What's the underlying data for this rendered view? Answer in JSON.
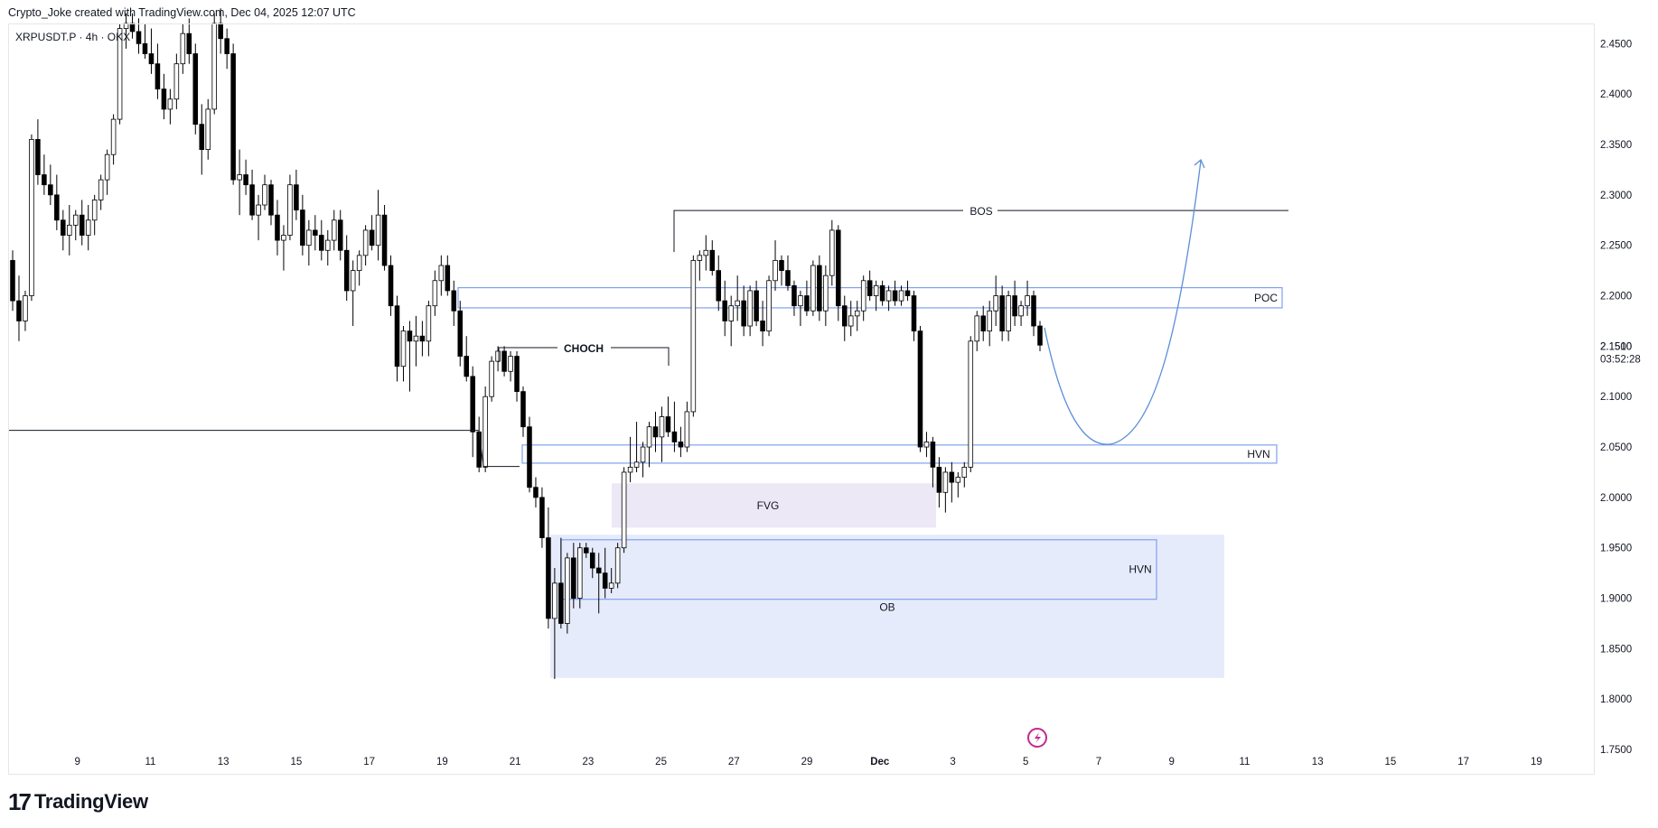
{
  "header": {
    "attribution": "Crypto_Joke created with TradingView.com, Dec 04, 2025 12:07 UTC"
  },
  "symbol": {
    "label": "XRPUSDT.P · 4h · OKX"
  },
  "footer": {
    "brand": "TradingView",
    "logo_icon": "tradingview-logo-icon"
  },
  "colors": {
    "up_candle": "#ffffff",
    "down_candle": "#000000",
    "candle_outline": "#000000",
    "zone_border": "#7fa1ee",
    "zone_fill_ob": "#e6ebfc",
    "zone_fill_fvg": "#ece8f5",
    "projection": "#5b8fd8",
    "flash_icon": "#c2298f"
  },
  "chart_data": {
    "type": "candlestick",
    "title": "",
    "timeframe": "4h",
    "ylim": [
      1.725,
      2.47
    ],
    "y_ticks": [
      "2.4500",
      "2.4000",
      "2.3500",
      "2.3000",
      "2.2500",
      "2.2000",
      "2.1500",
      "2.1000",
      "2.0500",
      "2.0000",
      "1.9500",
      "1.9000",
      "1.8500",
      "1.8000",
      "1.7500"
    ],
    "y_tick_values": [
      2.45,
      2.4,
      2.35,
      2.3,
      2.25,
      2.2,
      2.15,
      2.1,
      2.05,
      2.0,
      1.95,
      1.9,
      1.85,
      1.8,
      1.75
    ],
    "x_ticks": [
      "9",
      "11",
      "13",
      "15",
      "17",
      "19",
      "21",
      "23",
      "25",
      "27",
      "29",
      "Dec",
      "3",
      "5",
      "7",
      "9",
      "11",
      "13",
      "15",
      "17",
      "19"
    ],
    "x_tick_days": [
      9,
      11,
      13,
      15,
      17,
      19,
      21,
      23,
      25,
      27,
      29,
      31,
      33,
      35,
      37,
      39,
      41,
      43,
      45,
      47,
      49
    ],
    "x_range_days": [
      7.1,
      50.6
    ],
    "last_price": "2.1510",
    "countdown": "03:52:28",
    "candles": [
      [
        2.235,
        2.245,
        2.185,
        2.195
      ],
      [
        2.195,
        2.22,
        2.155,
        2.175
      ],
      [
        2.175,
        2.205,
        2.165,
        2.2
      ],
      [
        2.2,
        2.36,
        2.195,
        2.355
      ],
      [
        2.355,
        2.375,
        2.31,
        2.32
      ],
      [
        2.32,
        2.34,
        2.3,
        2.31
      ],
      [
        2.31,
        2.33,
        2.29,
        2.3
      ],
      [
        2.3,
        2.32,
        2.265,
        2.275
      ],
      [
        2.275,
        2.285,
        2.245,
        2.26
      ],
      [
        2.26,
        2.29,
        2.24,
        2.27
      ],
      [
        2.27,
        2.285,
        2.255,
        2.28
      ],
      [
        2.28,
        2.295,
        2.25,
        2.26
      ],
      [
        2.26,
        2.29,
        2.245,
        2.275
      ],
      [
        2.275,
        2.3,
        2.26,
        2.295
      ],
      [
        2.295,
        2.32,
        2.285,
        2.315
      ],
      [
        2.315,
        2.345,
        2.3,
        2.34
      ],
      [
        2.34,
        2.38,
        2.33,
        2.375
      ],
      [
        2.375,
        2.47,
        2.37,
        2.465
      ],
      [
        2.465,
        2.48,
        2.445,
        2.47
      ],
      [
        2.47,
        2.48,
        2.455,
        2.462
      ],
      [
        2.462,
        2.475,
        2.44,
        2.45
      ],
      [
        2.45,
        2.47,
        2.435,
        2.44
      ],
      [
        2.44,
        2.465,
        2.42,
        2.43
      ],
      [
        2.43,
        2.45,
        2.395,
        2.405
      ],
      [
        2.405,
        2.42,
        2.375,
        2.385
      ],
      [
        2.385,
        2.405,
        2.37,
        2.395
      ],
      [
        2.395,
        2.44,
        2.385,
        2.43
      ],
      [
        2.43,
        2.47,
        2.42,
        2.46
      ],
      [
        2.46,
        2.475,
        2.43,
        2.44
      ],
      [
        2.44,
        2.45,
        2.36,
        2.37
      ],
      [
        2.37,
        2.39,
        2.32,
        2.345
      ],
      [
        2.345,
        2.395,
        2.335,
        2.385
      ],
      [
        2.385,
        2.48,
        2.38,
        2.47
      ],
      [
        2.47,
        2.485,
        2.44,
        2.455
      ],
      [
        2.455,
        2.465,
        2.425,
        2.44
      ],
      [
        2.44,
        2.45,
        2.31,
        2.315
      ],
      [
        2.315,
        2.345,
        2.28,
        2.32
      ],
      [
        2.32,
        2.335,
        2.3,
        2.31
      ],
      [
        2.31,
        2.325,
        2.275,
        2.28
      ],
      [
        2.28,
        2.3,
        2.255,
        2.29
      ],
      [
        2.29,
        2.32,
        2.285,
        2.31
      ],
      [
        2.31,
        2.315,
        2.27,
        2.28
      ],
      [
        2.28,
        2.295,
        2.24,
        2.255
      ],
      [
        2.255,
        2.27,
        2.225,
        2.26
      ],
      [
        2.26,
        2.32,
        2.255,
        2.31
      ],
      [
        2.31,
        2.325,
        2.275,
        2.285
      ],
      [
        2.285,
        2.3,
        2.24,
        2.25
      ],
      [
        2.25,
        2.275,
        2.23,
        2.265
      ],
      [
        2.265,
        2.28,
        2.245,
        2.26
      ],
      [
        2.26,
        2.275,
        2.235,
        2.245
      ],
      [
        2.245,
        2.265,
        2.23,
        2.255
      ],
      [
        2.255,
        2.285,
        2.245,
        2.275
      ],
      [
        2.275,
        2.285,
        2.235,
        2.245
      ],
      [
        2.245,
        2.26,
        2.195,
        2.205
      ],
      [
        2.205,
        2.235,
        2.17,
        2.225
      ],
      [
        2.225,
        2.245,
        2.21,
        2.24
      ],
      [
        2.24,
        2.27,
        2.23,
        2.265
      ],
      [
        2.265,
        2.28,
        2.245,
        2.25
      ],
      [
        2.25,
        2.305,
        2.235,
        2.28
      ],
      [
        2.28,
        2.29,
        2.225,
        2.23
      ],
      [
        2.23,
        2.24,
        2.18,
        2.19
      ],
      [
        2.19,
        2.2,
        2.115,
        2.13
      ],
      [
        2.13,
        2.17,
        2.115,
        2.165
      ],
      [
        2.165,
        2.175,
        2.105,
        2.155
      ],
      [
        2.155,
        2.18,
        2.13,
        2.16
      ],
      [
        2.16,
        2.175,
        2.14,
        2.155
      ],
      [
        2.155,
        2.195,
        2.14,
        2.19
      ],
      [
        2.19,
        2.225,
        2.18,
        2.215
      ],
      [
        2.215,
        2.24,
        2.2,
        2.23
      ],
      [
        2.23,
        2.24,
        2.2,
        2.205
      ],
      [
        2.205,
        2.215,
        2.17,
        2.185
      ],
      [
        2.185,
        2.195,
        2.13,
        2.14
      ],
      [
        2.14,
        2.16,
        2.115,
        2.12
      ],
      [
        2.12,
        2.13,
        2.04,
        2.065
      ],
      [
        2.065,
        2.08,
        2.025,
        2.03
      ],
      [
        2.03,
        2.11,
        2.025,
        2.1
      ],
      [
        2.1,
        2.14,
        2.095,
        2.135
      ],
      [
        2.135,
        2.15,
        2.125,
        2.145
      ],
      [
        2.145,
        2.15,
        2.12,
        2.125
      ],
      [
        2.125,
        2.145,
        2.115,
        2.14
      ],
      [
        2.14,
        2.145,
        2.095,
        2.105
      ],
      [
        2.105,
        2.11,
        2.06,
        2.07
      ],
      [
        2.07,
        2.08,
        2.005,
        2.01
      ],
      [
        2.01,
        2.02,
        1.99,
        2.0
      ],
      [
        2.0,
        2.01,
        1.95,
        1.96
      ],
      [
        1.96,
        1.99,
        1.87,
        1.88
      ],
      [
        1.88,
        1.93,
        1.82,
        1.915
      ],
      [
        1.915,
        1.96,
        1.87,
        1.875
      ],
      [
        1.875,
        1.945,
        1.865,
        1.94
      ],
      [
        1.94,
        1.955,
        1.89,
        1.9
      ],
      [
        1.9,
        1.955,
        1.89,
        1.95
      ],
      [
        1.95,
        1.955,
        1.94,
        1.945
      ],
      [
        1.945,
        1.95,
        1.92,
        1.93
      ],
      [
        1.93,
        1.945,
        1.885,
        1.925
      ],
      [
        1.925,
        1.95,
        1.9,
        1.91
      ],
      [
        1.91,
        1.93,
        1.905,
        1.915
      ],
      [
        1.915,
        1.955,
        1.91,
        1.95
      ],
      [
        1.95,
        2.03,
        1.945,
        2.025
      ],
      [
        2.025,
        2.06,
        2.015,
        2.03
      ],
      [
        2.03,
        2.075,
        2.025,
        2.035
      ],
      [
        2.035,
        2.055,
        2.02,
        2.05
      ],
      [
        2.05,
        2.075,
        2.03,
        2.07
      ],
      [
        2.07,
        2.085,
        2.045,
        2.06
      ],
      [
        2.06,
        2.09,
        2.035,
        2.08
      ],
      [
        2.08,
        2.1,
        2.06,
        2.065
      ],
      [
        2.065,
        2.095,
        2.045,
        2.055
      ],
      [
        2.055,
        2.07,
        2.04,
        2.05
      ],
      [
        2.05,
        2.095,
        2.045,
        2.085
      ],
      [
        2.085,
        2.24,
        2.08,
        2.235
      ],
      [
        2.235,
        2.245,
        2.215,
        2.24
      ],
      [
        2.24,
        2.26,
        2.225,
        2.245
      ],
      [
        2.245,
        2.255,
        2.22,
        2.225
      ],
      [
        2.225,
        2.24,
        2.185,
        2.195
      ],
      [
        2.195,
        2.215,
        2.16,
        2.175
      ],
      [
        2.175,
        2.2,
        2.15,
        2.19
      ],
      [
        2.19,
        2.22,
        2.175,
        2.195
      ],
      [
        2.195,
        2.21,
        2.16,
        2.17
      ],
      [
        2.17,
        2.21,
        2.16,
        2.205
      ],
      [
        2.205,
        2.215,
        2.17,
        2.175
      ],
      [
        2.175,
        2.195,
        2.15,
        2.165
      ],
      [
        2.165,
        2.22,
        2.16,
        2.215
      ],
      [
        2.215,
        2.255,
        2.205,
        2.235
      ],
      [
        2.235,
        2.24,
        2.21,
        2.225
      ],
      [
        2.225,
        2.24,
        2.205,
        2.21
      ],
      [
        2.21,
        2.215,
        2.18,
        2.19
      ],
      [
        2.19,
        2.205,
        2.17,
        2.2
      ],
      [
        2.2,
        2.215,
        2.18,
        2.185
      ],
      [
        2.185,
        2.235,
        2.18,
        2.23
      ],
      [
        2.23,
        2.24,
        2.175,
        2.185
      ],
      [
        2.185,
        2.23,
        2.17,
        2.22
      ],
      [
        2.22,
        2.275,
        2.21,
        2.265
      ],
      [
        2.265,
        2.27,
        2.175,
        2.19
      ],
      [
        2.19,
        2.2,
        2.155,
        2.17
      ],
      [
        2.17,
        2.195,
        2.16,
        2.18
      ],
      [
        2.18,
        2.195,
        2.165,
        2.185
      ],
      [
        2.185,
        2.22,
        2.175,
        2.215
      ],
      [
        2.215,
        2.225,
        2.195,
        2.2
      ],
      [
        2.2,
        2.215,
        2.185,
        2.21
      ],
      [
        2.21,
        2.215,
        2.19,
        2.195
      ],
      [
        2.195,
        2.21,
        2.185,
        2.205
      ],
      [
        2.205,
        2.215,
        2.19,
        2.195
      ],
      [
        2.195,
        2.21,
        2.19,
        2.205
      ],
      [
        2.205,
        2.215,
        2.195,
        2.2
      ],
      [
        2.2,
        2.205,
        2.155,
        2.165
      ],
      [
        2.165,
        2.17,
        2.045,
        2.05
      ],
      [
        2.05,
        2.065,
        2.04,
        2.055
      ],
      [
        2.055,
        2.06,
        2.01,
        2.03
      ],
      [
        2.03,
        2.04,
        1.99,
        2.005
      ],
      [
        2.005,
        2.03,
        1.985,
        2.025
      ],
      [
        2.025,
        2.035,
        1.995,
        2.015
      ],
      [
        2.015,
        2.025,
        2.0,
        2.02
      ],
      [
        2.02,
        2.035,
        2.01,
        2.03
      ],
      [
        2.03,
        2.16,
        2.025,
        2.155
      ],
      [
        2.155,
        2.185,
        2.145,
        2.18
      ],
      [
        2.18,
        2.19,
        2.155,
        2.165
      ],
      [
        2.165,
        2.195,
        2.15,
        2.185
      ],
      [
        2.185,
        2.22,
        2.17,
        2.2
      ],
      [
        2.2,
        2.21,
        2.155,
        2.165
      ],
      [
        2.165,
        2.205,
        2.155,
        2.2
      ],
      [
        2.2,
        2.215,
        2.17,
        2.18
      ],
      [
        2.18,
        2.195,
        2.17,
        2.19
      ],
      [
        2.19,
        2.215,
        2.18,
        2.2
      ],
      [
        2.2,
        2.205,
        2.16,
        2.17
      ],
      [
        2.17,
        2.175,
        2.145,
        2.151
      ]
    ],
    "annotations": [
      {
        "label": "BOS",
        "type": "line",
        "price": 2.2845
      },
      {
        "label": "CHOCH",
        "type": "line",
        "price": 2.1485
      },
      {
        "label": "",
        "type": "line",
        "price": 2.0665
      },
      {
        "label": "POC",
        "type": "zone",
        "top": 2.208,
        "bottom": 2.188
      },
      {
        "label": "HVN",
        "type": "zone",
        "top": 2.052,
        "bottom": 2.034
      },
      {
        "label": "FVG",
        "type": "zone",
        "top": 2.014,
        "bottom": 1.97
      },
      {
        "label": "HVN",
        "type": "zone",
        "top": 1.958,
        "bottom": 1.899
      },
      {
        "label": "OB",
        "type": "zone",
        "top": 1.963,
        "bottom": 1.821
      }
    ]
  }
}
